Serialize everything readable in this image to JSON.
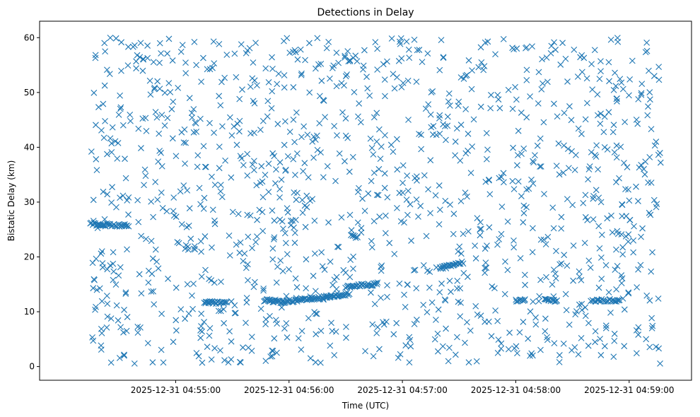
{
  "chart_data": {
    "type": "scatter",
    "title": "Detections in Delay",
    "xlabel": "Time (UTC)",
    "ylabel": "Bistatic Delay (km)",
    "x_axis_type": "datetime",
    "xlim": [
      "2025-12-31 04:53:48",
      "2025-12-31 04:59:33"
    ],
    "ylim": [
      -2.5,
      63
    ],
    "x_ticks": [
      {
        "label": "2025-12-31 04:55:00",
        "value": "2025-12-31 04:55:00"
      },
      {
        "label": "2025-12-31 04:56:00",
        "value": "2025-12-31 04:56:00"
      },
      {
        "label": "2025-12-31 04:57:00",
        "value": "2025-12-31 04:57:00"
      },
      {
        "label": "2025-12-31 04:58:00",
        "value": "2025-12-31 04:58:00"
      },
      {
        "label": "2025-12-31 04:59:00",
        "value": "2025-12-31 04:59:00"
      }
    ],
    "y_ticks": [
      0,
      10,
      20,
      30,
      40,
      50,
      60
    ],
    "grid": false,
    "legend": "none",
    "marker": "x",
    "color": "#1f77b4",
    "time_span": [
      "2025-12-31 04:54:15",
      "2025-12-31 04:59:17"
    ],
    "clutter": {
      "description_free": true,
      "y_range": [
        0.5,
        60
      ]
    },
    "tracks": [
      {
        "points": [
          [
            "2025-12-31 04:54:15",
            26.0
          ],
          [
            "2025-12-31 04:54:35",
            25.7
          ]
        ]
      },
      {
        "points": [
          [
            "2025-12-31 04:55:15",
            11.8
          ],
          [
            "2025-12-31 04:55:27",
            11.5
          ]
        ]
      },
      {
        "points": [
          [
            "2025-12-31 04:55:47",
            12.1
          ],
          [
            "2025-12-31 04:55:57",
            11.8
          ],
          [
            "2025-12-31 04:56:12",
            12.3
          ],
          [
            "2025-12-31 04:56:22",
            12.8
          ],
          [
            "2025-12-31 04:56:32",
            13.3
          ]
        ]
      },
      {
        "points": [
          [
            "2025-12-31 04:56:30",
            14.5
          ],
          [
            "2025-12-31 04:56:47",
            15.1
          ]
        ]
      },
      {
        "points": [
          [
            "2025-12-31 04:57:20",
            18.0
          ],
          [
            "2025-12-31 04:57:27",
            18.5
          ],
          [
            "2025-12-31 04:57:32",
            19.0
          ]
        ]
      },
      {
        "points": [
          [
            "2025-12-31 04:58:00",
            12.0
          ],
          [
            "2025-12-31 04:58:05",
            12.1
          ]
        ]
      },
      {
        "points": [
          [
            "2025-12-31 04:58:15",
            12.2
          ],
          [
            "2025-12-31 04:58:22",
            12.0
          ]
        ]
      },
      {
        "points": [
          [
            "2025-12-31 04:58:40",
            12.0
          ],
          [
            "2025-12-31 04:58:55",
            12.1
          ]
        ]
      },
      {
        "points": [
          [
            "2025-12-31 04:56:33",
            23.8
          ],
          [
            "2025-12-31 04:56:36",
            23.6
          ]
        ]
      }
    ]
  }
}
